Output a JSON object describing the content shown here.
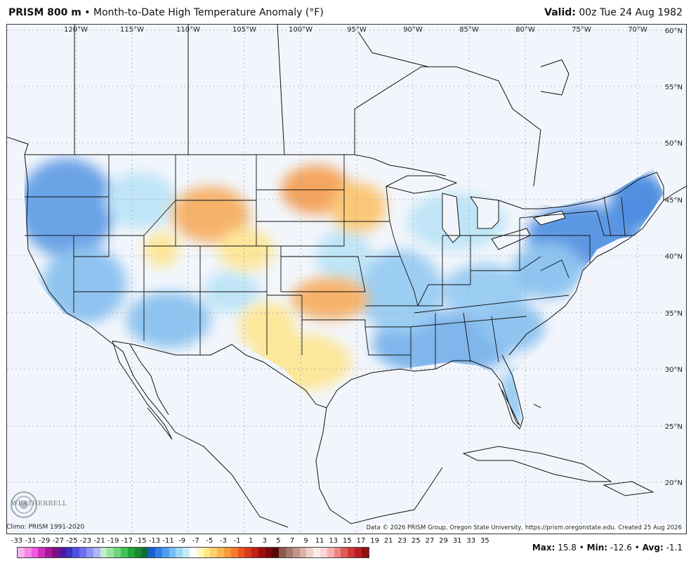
{
  "header": {
    "title_bold": "PRISM 800 m",
    "title_rest": " • Month-to-Date High Temperature Anomaly (°F)",
    "valid_bold": "Valid:",
    "valid_rest": " 00z Tue 24 Aug 1982"
  },
  "map": {
    "lon_labels": [
      "120°W",
      "115°W",
      "110°W",
      "105°W",
      "100°W",
      "95°W",
      "90°W",
      "85°W",
      "80°W",
      "75°W",
      "70°W"
    ],
    "lat_labels": [
      "60°N",
      "55°N",
      "50°N",
      "45°N",
      "40°N",
      "35°N",
      "30°N",
      "25°N",
      "20°N"
    ],
    "colors": {
      "cool_strong": "#4f8ee0",
      "cool": "#8fc4f0",
      "cool_light": "#bfe5f7",
      "neutral": "#f2f6fc",
      "warm_light": "#fde79a",
      "warm": "#fbc877",
      "warm_strong": "#f4a55e",
      "lines": "#111111"
    }
  },
  "footer": {
    "climo": "Climo: PRISM 1991-2020",
    "credit": "Data © 2026 PRISM Group, Oregon State University, https://prism.oregonstate.edu. Created 25 Aug 2026",
    "logo_text": "WEATHERBELL"
  },
  "legend": {
    "labels": [
      "-33",
      "-31",
      "-29",
      "-27",
      "-25",
      "-23",
      "-21",
      "-19",
      "-17",
      "-15",
      "-13",
      "-11",
      "-9",
      "-7",
      "-5",
      "-3",
      "-1",
      "1",
      "3",
      "5",
      "7",
      "9",
      "11",
      "13",
      "15",
      "17",
      "19",
      "21",
      "23",
      "25",
      "27",
      "29",
      "31",
      "33",
      "35"
    ],
    "colors": [
      "#f9b0f0",
      "#f486e6",
      "#ee5cdc",
      "#d42fc2",
      "#a81a9a",
      "#7e1085",
      "#4f17a0",
      "#3a30c4",
      "#4d4fe0",
      "#6b6ff0",
      "#8e92f5",
      "#b0b4f8",
      "#bfeec8",
      "#98e3a2",
      "#6fd57b",
      "#44c257",
      "#22a63c",
      "#1a8a30",
      "#0f6f3b",
      "#1b5fcf",
      "#2f7ee6",
      "#4f9ef0",
      "#74bcf4",
      "#9ed6f7",
      "#c4ebfa",
      "#ffffff",
      "#fff7bd",
      "#ffe88a",
      "#fdd06b",
      "#fbb64f",
      "#f89a3a",
      "#f47a2a",
      "#ea5620",
      "#d93a18",
      "#c12012",
      "#9e0f0e",
      "#7a0a0a",
      "#5a0707",
      "#8a5a4e",
      "#a8766a",
      "#c29488",
      "#d9b2a8",
      "#ecd2ca",
      "#f9eae5",
      "#fcd6d6",
      "#f7b0b0",
      "#ef8686",
      "#e25a5a",
      "#cf3838",
      "#b81e1e",
      "#8e1010"
    ],
    "legend_note": ""
  },
  "stats": {
    "max_label": "Max:",
    "max_value": " 15.8",
    "min_label": "Min:",
    "min_value": " -12.6",
    "avg_label": "Avg:",
    "avg_value": " -1.1"
  }
}
